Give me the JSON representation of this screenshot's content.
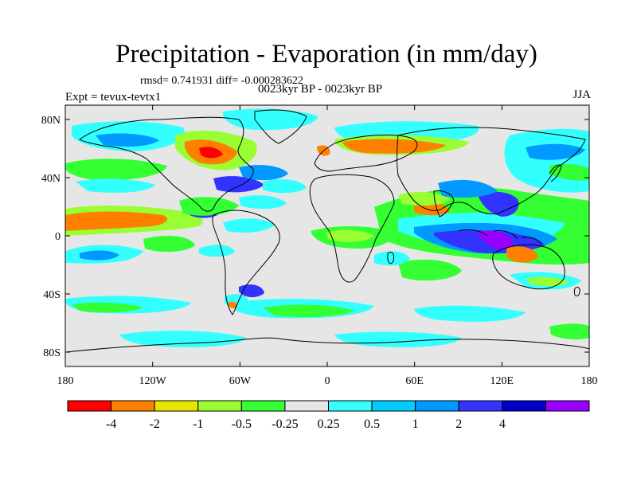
{
  "title": "Precipitation - Evaporation (in mm/day)",
  "stats": "rmsd= 0.741931 diff= -0.000283622",
  "period": "0023kyr BP - 0023kyr BP",
  "experiment": "Expt = tevux-tevtx1",
  "season": "JJA",
  "y_axis": {
    "ticks": [
      "80N",
      "40N",
      "0",
      "40S",
      "80S"
    ]
  },
  "x_axis": {
    "ticks": [
      "180",
      "120W",
      "60W",
      "0",
      "60E",
      "120E",
      "180"
    ]
  },
  "colorbar": {
    "colors": [
      "#ff0000",
      "#ff8000",
      "#e6e600",
      "#99ff33",
      "#33ff33",
      "#e6e6e6",
      "#33ffff",
      "#00ccff",
      "#0099ff",
      "#3333ff",
      "#0000cc",
      "#9900ff"
    ],
    "labels": [
      "-4",
      "-2",
      "-1",
      "-0.5",
      "-0.25",
      "0.25",
      "0.5",
      "1",
      "2",
      "4"
    ]
  },
  "background_color": "#e6e6e6"
}
